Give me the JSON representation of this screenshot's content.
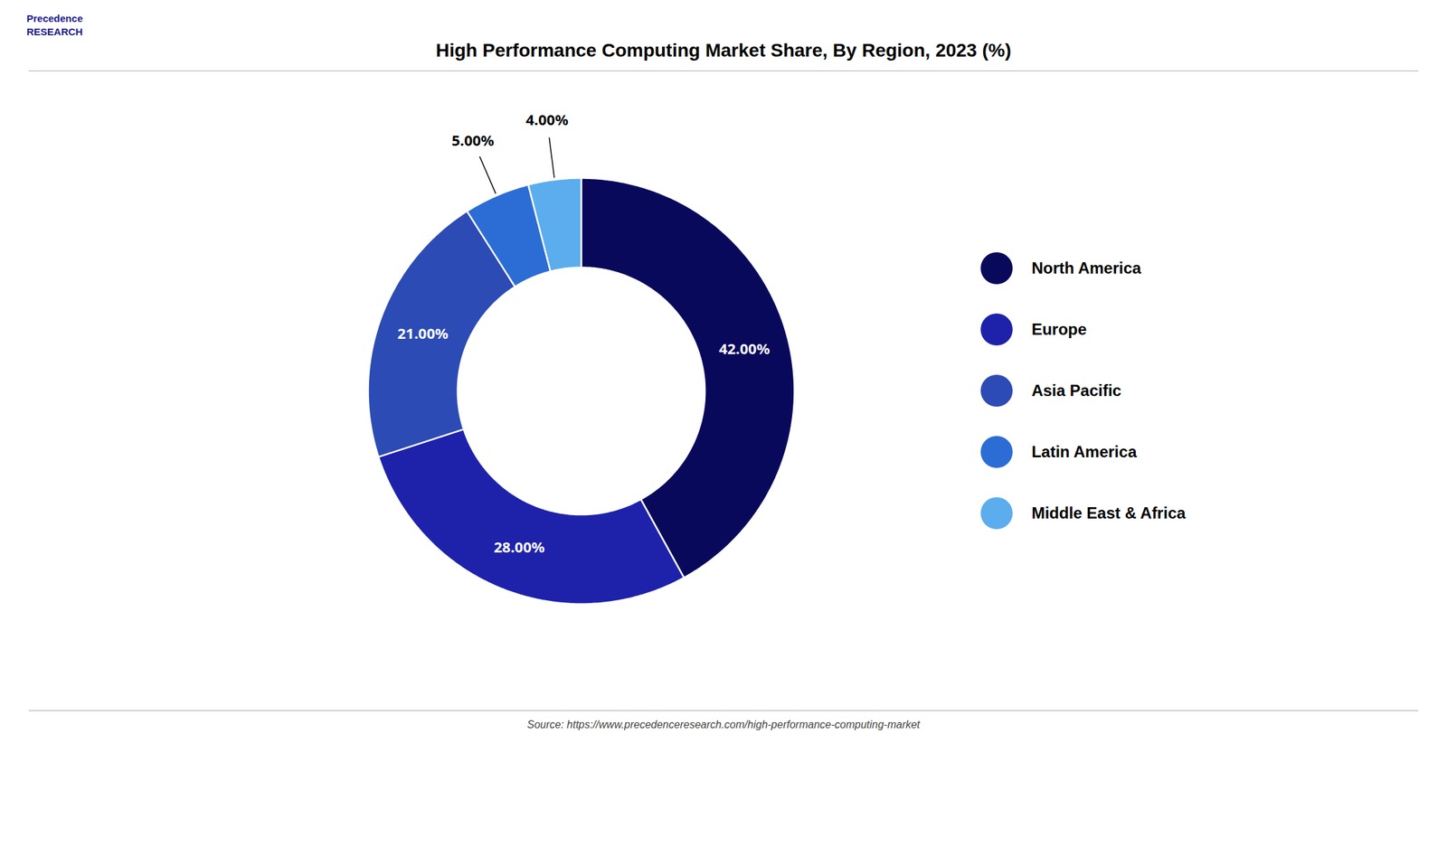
{
  "chart_data": {
    "type": "donut",
    "title": "High Performance Computing Market Share, By Region, 2023 (%)",
    "categories": [
      "North America",
      "Europe",
      "Asia Pacific",
      "Latin America",
      "Middle East & Africa"
    ],
    "values": [
      42.0,
      28.0,
      21.0,
      5.0,
      4.0
    ],
    "value_labels": [
      "42.00%",
      "28.00%",
      "21.00%",
      "5.00%",
      "4.00%"
    ],
    "colors": [
      "#09095c",
      "#1e22aa",
      "#2d4bb5",
      "#2c6dd5",
      "#5badee"
    ],
    "data_labels": true,
    "legend": "right",
    "annotations": [
      "Precedence\nRESEARCH",
      "Source: https://www.precedenceresearch.com/high-performance-computing-market"
    ]
  }
}
